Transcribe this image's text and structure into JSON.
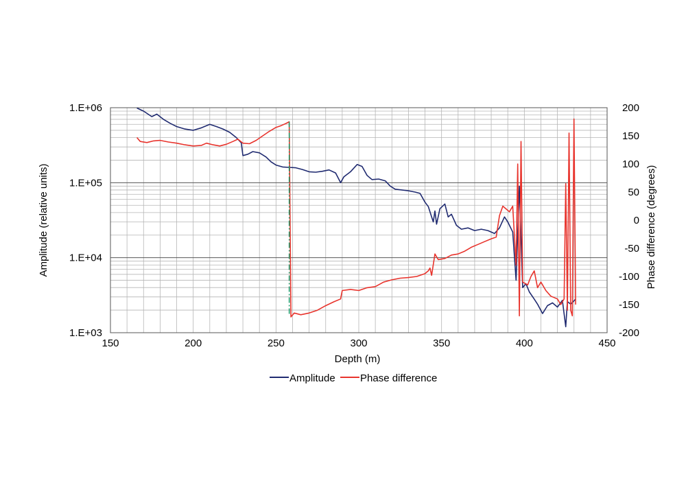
{
  "chart_data": {
    "type": "line",
    "xlabel": "Depth (m)",
    "ylabel": "Amplitude (relative units)",
    "y2label": "Phase difference (degrees)",
    "xlim": [
      150,
      450
    ],
    "ylim": [
      1000,
      1000000
    ],
    "yscale": "log",
    "y2lim": [
      -200,
      200
    ],
    "x_ticks": [
      150,
      200,
      250,
      300,
      350,
      400,
      450
    ],
    "x_tick_labels": [
      "150",
      "200",
      "250",
      "300",
      "350",
      "400",
      "450"
    ],
    "y_ticks": [
      1000,
      10000,
      100000,
      1000000
    ],
    "y_tick_labels": [
      "1.E+03",
      "1.E+04",
      "1.E+05",
      "1.E+06"
    ],
    "y2_ticks": [
      -200,
      -150,
      -100,
      -50,
      0,
      50,
      100,
      150,
      200
    ],
    "y2_tick_labels": [
      "-200",
      "-150",
      "-100",
      "-50",
      "0",
      "50",
      "100",
      "150",
      "200"
    ],
    "grid": true,
    "legend_position": "bottom",
    "marker_line": {
      "x": 258,
      "y_from": 175,
      "y_to": -170,
      "axis": "y2",
      "color": "#1b9a6a"
    },
    "series": [
      {
        "name": "Amplitude",
        "axis": "y",
        "color": "#1f2a70",
        "points": [
          [
            166,
            990000
          ],
          [
            170,
            900000
          ],
          [
            175,
            760000
          ],
          [
            178,
            820000
          ],
          [
            182,
            700000
          ],
          [
            186,
            620000
          ],
          [
            190,
            560000
          ],
          [
            195,
            520000
          ],
          [
            200,
            500000
          ],
          [
            205,
            540000
          ],
          [
            210,
            600000
          ],
          [
            214,
            560000
          ],
          [
            218,
            520000
          ],
          [
            222,
            470000
          ],
          [
            226,
            400000
          ],
          [
            229,
            340000
          ],
          [
            230,
            230000
          ],
          [
            233,
            240000
          ],
          [
            236,
            260000
          ],
          [
            240,
            250000
          ],
          [
            244,
            220000
          ],
          [
            247,
            190000
          ],
          [
            250,
            172000
          ],
          [
            254,
            162000
          ],
          [
            258,
            160000
          ],
          [
            262,
            158000
          ],
          [
            266,
            150000
          ],
          [
            270,
            140000
          ],
          [
            274,
            138000
          ],
          [
            278,
            142000
          ],
          [
            282,
            148000
          ],
          [
            286,
            135000
          ],
          [
            289,
            100000
          ],
          [
            291,
            120000
          ],
          [
            295,
            140000
          ],
          [
            299,
            175000
          ],
          [
            302,
            165000
          ],
          [
            305,
            125000
          ],
          [
            308,
            110000
          ],
          [
            312,
            112000
          ],
          [
            316,
            106000
          ],
          [
            319,
            90000
          ],
          [
            322,
            82000
          ],
          [
            326,
            80000
          ],
          [
            330,
            78000
          ],
          [
            334,
            75000
          ],
          [
            337,
            72000
          ],
          [
            340,
            55000
          ],
          [
            342,
            48000
          ],
          [
            344,
            35000
          ],
          [
            345,
            30000
          ],
          [
            346,
            42000
          ],
          [
            347,
            28000
          ],
          [
            349,
            45000
          ],
          [
            352,
            52000
          ],
          [
            354,
            35000
          ],
          [
            356,
            38000
          ],
          [
            359,
            27000
          ],
          [
            362,
            24000
          ],
          [
            366,
            25000
          ],
          [
            370,
            23000
          ],
          [
            374,
            24000
          ],
          [
            378,
            23000
          ],
          [
            382,
            21000
          ],
          [
            385,
            25000
          ],
          [
            388,
            35000
          ],
          [
            390,
            30000
          ],
          [
            393,
            22000
          ],
          [
            395,
            5000
          ],
          [
            397,
            90000
          ],
          [
            399,
            4000
          ],
          [
            401,
            4500
          ],
          [
            403,
            3500
          ],
          [
            406,
            2800
          ],
          [
            408,
            2400
          ],
          [
            411,
            1800
          ],
          [
            414,
            2300
          ],
          [
            417,
            2500
          ],
          [
            420,
            2200
          ],
          [
            423,
            2700
          ],
          [
            425,
            1200
          ],
          [
            426,
            2600
          ],
          [
            428,
            2400
          ],
          [
            431,
            2800
          ]
        ]
      },
      {
        "name": "Phase difference",
        "axis": "y2",
        "color": "#e8332c",
        "points": [
          [
            166,
            147
          ],
          [
            168,
            140
          ],
          [
            172,
            138
          ],
          [
            176,
            141
          ],
          [
            180,
            142
          ],
          [
            185,
            139
          ],
          [
            190,
            137
          ],
          [
            195,
            134
          ],
          [
            200,
            132
          ],
          [
            205,
            133
          ],
          [
            208,
            137
          ],
          [
            212,
            134
          ],
          [
            216,
            132
          ],
          [
            220,
            135
          ],
          [
            224,
            140
          ],
          [
            227,
            144
          ],
          [
            230,
            137
          ],
          [
            234,
            136
          ],
          [
            238,
            142
          ],
          [
            242,
            150
          ],
          [
            246,
            158
          ],
          [
            250,
            165
          ],
          [
            253,
            168
          ],
          [
            256,
            172
          ],
          [
            258,
            175
          ],
          [
            259,
            -172
          ],
          [
            261,
            -165
          ],
          [
            265,
            -168
          ],
          [
            270,
            -165
          ],
          [
            275,
            -160
          ],
          [
            280,
            -152
          ],
          [
            285,
            -145
          ],
          [
            289,
            -140
          ],
          [
            290,
            -125
          ],
          [
            295,
            -123
          ],
          [
            300,
            -125
          ],
          [
            305,
            -120
          ],
          [
            310,
            -118
          ],
          [
            315,
            -110
          ],
          [
            320,
            -106
          ],
          [
            325,
            -103
          ],
          [
            330,
            -102
          ],
          [
            335,
            -100
          ],
          [
            340,
            -95
          ],
          [
            342,
            -90
          ],
          [
            343,
            -85
          ],
          [
            344,
            -98
          ],
          [
            346,
            -60
          ],
          [
            348,
            -70
          ],
          [
            352,
            -68
          ],
          [
            356,
            -62
          ],
          [
            360,
            -60
          ],
          [
            364,
            -55
          ],
          [
            368,
            -48
          ],
          [
            372,
            -43
          ],
          [
            376,
            -38
          ],
          [
            380,
            -33
          ],
          [
            383,
            -30
          ],
          [
            385,
            8
          ],
          [
            387,
            25
          ],
          [
            389,
            20
          ],
          [
            391,
            15
          ],
          [
            393,
            25
          ],
          [
            395,
            -80
          ],
          [
            396,
            100
          ],
          [
            397,
            -170
          ],
          [
            398,
            140
          ],
          [
            399,
            -110
          ],
          [
            402,
            -115
          ],
          [
            404,
            -100
          ],
          [
            406,
            -90
          ],
          [
            408,
            -120
          ],
          [
            410,
            -110
          ],
          [
            413,
            -125
          ],
          [
            416,
            -135
          ],
          [
            420,
            -140
          ],
          [
            422,
            -150
          ],
          [
            424,
            -140
          ],
          [
            425,
            65
          ],
          [
            426,
            -160
          ],
          [
            427,
            155
          ],
          [
            428,
            -160
          ],
          [
            429,
            -170
          ],
          [
            430,
            180
          ],
          [
            431,
            -150
          ]
        ]
      }
    ]
  }
}
